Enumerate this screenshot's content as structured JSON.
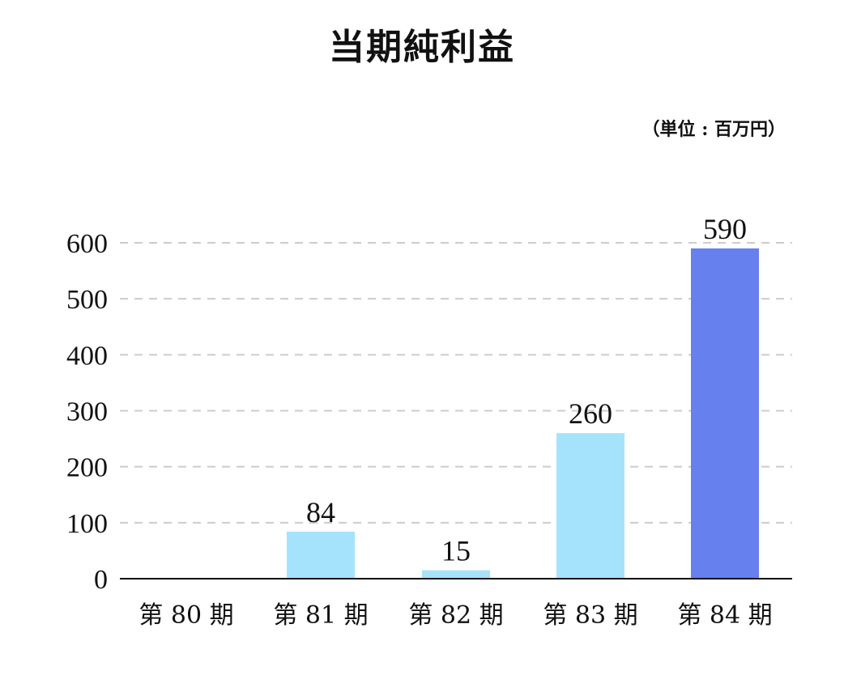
{
  "chart_data": {
    "type": "bar",
    "title": "当期純利益",
    "unit": "（単位 : 百万円）",
    "categories": [
      "第 80 期",
      "第 81 期",
      "第 82 期",
      "第 83 期",
      "第 84 期"
    ],
    "values": [
      0,
      84,
      15,
      260,
      590
    ],
    "data_labels": [
      "",
      "84",
      "15",
      "260",
      "590"
    ],
    "yticks": [
      "0",
      "100",
      "200",
      "300",
      "400",
      "500",
      "600"
    ],
    "ylim": [
      0,
      600
    ],
    "grid": true,
    "colors": [
      "#a5e3fc",
      "#a5e3fc",
      "#a5e3fc",
      "#a5e3fc",
      "#6680ee"
    ]
  }
}
